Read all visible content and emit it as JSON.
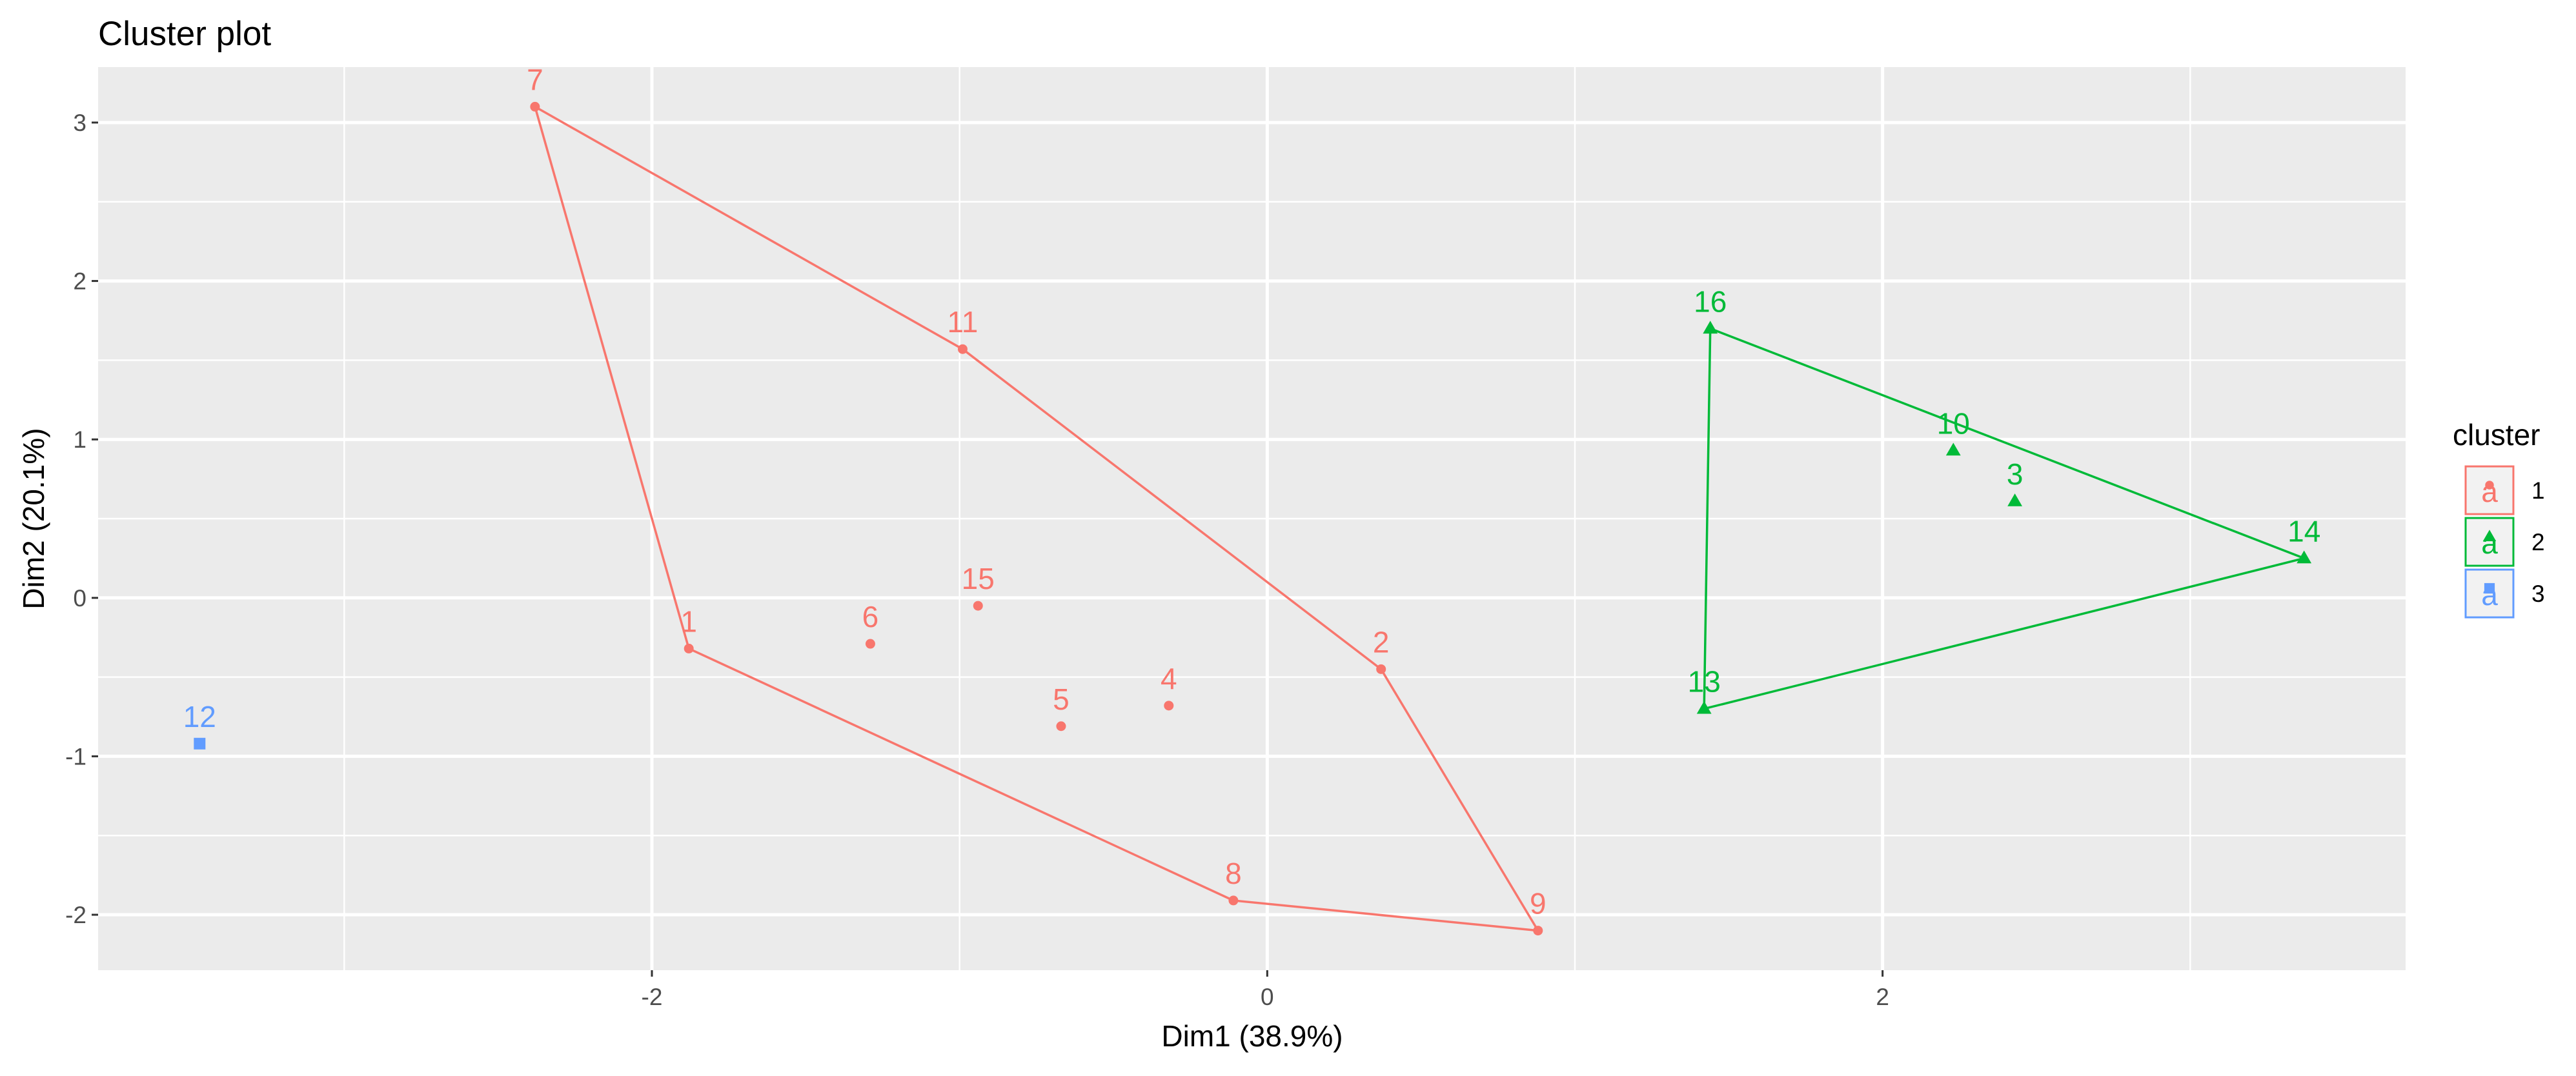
{
  "chart_data": {
    "type": "scatter",
    "title": "Cluster plot",
    "xlabel": "Dim1 (38.9%)",
    "ylabel": "Dim2 (20.1%)",
    "xlim": [
      -3.8,
      3.7
    ],
    "ylim": [
      -2.35,
      3.35
    ],
    "xticks": [
      -2,
      0,
      2
    ],
    "yticks": [
      -2,
      -1,
      0,
      1,
      2,
      3
    ],
    "grid": true,
    "legend": {
      "title": "cluster",
      "placement": "right",
      "entries": [
        {
          "label": "1",
          "cluster": 1
        },
        {
          "label": "2",
          "cluster": 2
        },
        {
          "label": "3",
          "cluster": 3
        }
      ]
    },
    "colors": {
      "1": "#F8766D",
      "2": "#00BA38",
      "3": "#619CFF"
    },
    "markers": {
      "1": "circle",
      "2": "triangle",
      "3": "square"
    },
    "points": [
      {
        "label": "1",
        "x": -1.88,
        "y": -0.32,
        "cluster": 1
      },
      {
        "label": "2",
        "x": 0.37,
        "y": -0.45,
        "cluster": 1
      },
      {
        "label": "3",
        "x": 2.43,
        "y": 0.61,
        "cluster": 2
      },
      {
        "label": "4",
        "x": -0.32,
        "y": -0.68,
        "cluster": 1
      },
      {
        "label": "5",
        "x": -0.67,
        "y": -0.81,
        "cluster": 1
      },
      {
        "label": "6",
        "x": -1.29,
        "y": -0.29,
        "cluster": 1
      },
      {
        "label": "7",
        "x": -2.38,
        "y": 3.1,
        "cluster": 1
      },
      {
        "label": "8",
        "x": -0.11,
        "y": -1.91,
        "cluster": 1
      },
      {
        "label": "9",
        "x": 0.88,
        "y": -2.1,
        "cluster": 1
      },
      {
        "label": "10",
        "x": 2.23,
        "y": 0.93,
        "cluster": 2
      },
      {
        "label": "11",
        "x": -0.99,
        "y": 1.57,
        "cluster": 1
      },
      {
        "label": "12",
        "x": -3.47,
        "y": -0.92,
        "cluster": 3
      },
      {
        "label": "13",
        "x": 1.42,
        "y": -0.7,
        "cluster": 2
      },
      {
        "label": "14",
        "x": 3.37,
        "y": 0.25,
        "cluster": 2
      },
      {
        "label": "15",
        "x": -0.94,
        "y": -0.05,
        "cluster": 1
      },
      {
        "label": "16",
        "x": 1.44,
        "y": 1.7,
        "cluster": 2
      }
    ],
    "hulls": [
      {
        "cluster": 1,
        "vertices": [
          "7",
          "11",
          "2",
          "9",
          "8",
          "1"
        ]
      },
      {
        "cluster": 2,
        "vertices": [
          "16",
          "14",
          "13"
        ]
      }
    ]
  }
}
